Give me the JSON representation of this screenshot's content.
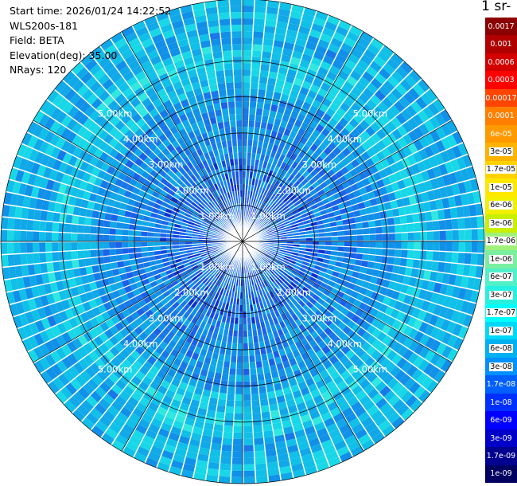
{
  "info": {
    "start_time": "Start time: 2026/01/24 14:22:52",
    "instrument": "WLS200s-181",
    "field": "Field: BETA",
    "elevation": "Elevation(deg): 35.00",
    "nrays": "NRays: 120"
  },
  "colorbar": {
    "title_fragment": "-1 sr-",
    "ticks": [
      "0.0017",
      "0.001",
      "0.0006",
      "0.0003",
      "0.00017",
      "0.0001",
      "6e-05",
      "3e-05",
      "1.7e-05",
      "1e-05",
      "6e-06",
      "3e-06",
      "1.7e-06",
      "1e-06",
      "6e-07",
      "3e-07",
      "1.7e-07",
      "1e-07",
      "6e-08",
      "3e-08",
      "1.7e-08",
      "1e-08",
      "6e-09",
      "3e-09",
      "1.7e-09",
      "1e-09"
    ],
    "colors": [
      "#8b0000",
      "#b00000",
      "#d40000",
      "#ff0000",
      "#ff4500",
      "#ff7f00",
      "#ff9900",
      "#ffb300",
      "#ffd200",
      "#ffe800",
      "#f0f000",
      "#c8f000",
      "#a0f07a",
      "#78f0a0",
      "#50f0c8",
      "#28f0e0",
      "#00ffff",
      "#00d8f8",
      "#00b0f0",
      "#0090ff",
      "#0060ff",
      "#0030ff",
      "#0000ff",
      "#0000c8",
      "#000090",
      "#000060"
    ],
    "label_colors": [
      "#ffffff",
      "#ffffff",
      "#ffffff",
      "#ffffff",
      "#ffffff",
      "#ffffff",
      "#ffffff",
      "#000000",
      "#000000",
      "#000000",
      "#000000",
      "#000000",
      "#000000",
      "#000000",
      "#000000",
      "#000000",
      "#000000",
      "#000000",
      "#000000",
      "#000000",
      "#ffffff",
      "#ffffff",
      "#ffffff",
      "#ffffff",
      "#ffffff",
      "#ffffff"
    ]
  },
  "range_rings": {
    "labels": [
      "1.00km",
      "2.00km",
      "3.00km",
      "4.00km",
      "5.00km"
    ],
    "values_km": [
      1,
      2,
      3,
      4,
      5
    ],
    "max_range_km": 6.7
  },
  "field_colors": [
    "#0a30c8",
    "#1048e0",
    "#1a60e8",
    "#1878e8",
    "#1090e8",
    "#10a8e8",
    "#10c0e8",
    "#18d8e8",
    "#30e8e0"
  ]
}
